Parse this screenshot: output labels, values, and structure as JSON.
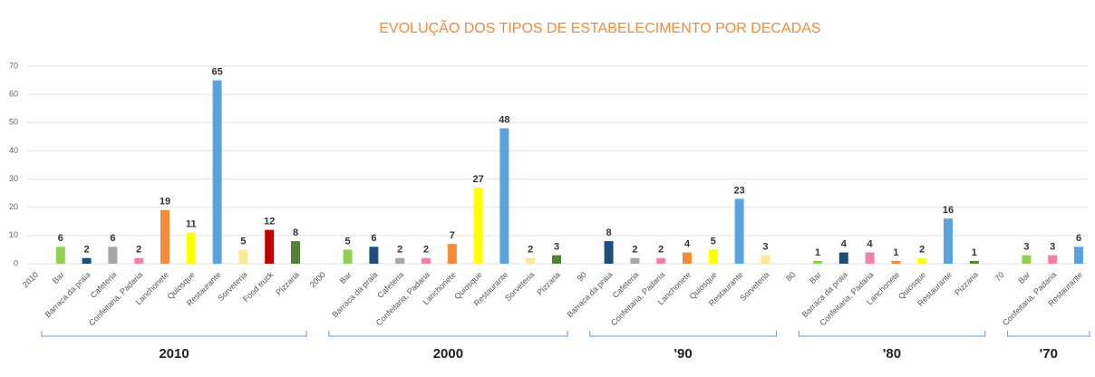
{
  "chart_data": {
    "type": "bar",
    "title": "EVOLUÇÃO DOS TIPOS DE ESTABELECIMENTO POR DECADAS",
    "ylim": [
      0,
      70
    ],
    "yticks": [
      0,
      10,
      20,
      30,
      40,
      50,
      60,
      70
    ],
    "grid": true,
    "groups": [
      {
        "label": "2010",
        "categories": [
          "2010",
          "Bar",
          "Barraca da praia",
          "Cafeteria",
          "Confeitaria, Padaria",
          "Lanchonete",
          "Quiosque",
          "Restaurante",
          "Sorveteria",
          "Food truck",
          "Pizzaria"
        ],
        "values": [
          null,
          6,
          2,
          6,
          2,
          19,
          11,
          65,
          5,
          12,
          8
        ],
        "colors": [
          null,
          "#92d050",
          "#1f4e79",
          "#a6a6a6",
          "#f47fac",
          "#f28c38",
          "#ffff00",
          "#5ba3dc",
          "#ffe699",
          "#c00000",
          "#548235"
        ]
      },
      {
        "label": "2000",
        "categories": [
          "2000",
          "Bar",
          "Barraca da praia",
          "Cafeteria",
          "Confeitaria, Padaria",
          "Lanchonete",
          "Quiosque",
          "Restaurante",
          "Sorveteria",
          "Pizzaria"
        ],
        "values": [
          null,
          5,
          6,
          2,
          2,
          7,
          27,
          48,
          2,
          3
        ],
        "colors": [
          null,
          "#92d050",
          "#1f4e79",
          "#a6a6a6",
          "#f47fac",
          "#f28c38",
          "#ffff00",
          "#5ba3dc",
          "#ffe699",
          "#548235"
        ]
      },
      {
        "label": "'90",
        "categories": [
          "90",
          "Barraca da praia",
          "Cafeteria",
          "Confeitaria, Padaria",
          "Lanchonete",
          "Quiosque",
          "Restaurante",
          "Sorveteria"
        ],
        "values": [
          null,
          8,
          2,
          2,
          4,
          5,
          23,
          3
        ],
        "colors": [
          null,
          "#1f4e79",
          "#a6a6a6",
          "#f47fac",
          "#f28c38",
          "#ffff00",
          "#5ba3dc",
          "#ffe699"
        ]
      },
      {
        "label": "'80",
        "categories": [
          "80",
          "Bar",
          "Barraca da praia",
          "Confeitaria, Padaria",
          "Lanchonete",
          "Quiosque",
          "Restaurante",
          "Pizzaria"
        ],
        "values": [
          null,
          1,
          4,
          4,
          1,
          2,
          16,
          1
        ],
        "colors": [
          null,
          "#92d050",
          "#1f4e79",
          "#f47fac",
          "#f28c38",
          "#ffff00",
          "#5ba3dc",
          "#548235"
        ]
      },
      {
        "label": "'70",
        "categories": [
          "70",
          "Bar",
          "Confeitaria, Padaria",
          "Restaurante"
        ],
        "values": [
          null,
          3,
          3,
          6
        ],
        "colors": [
          null,
          "#92d050",
          "#f47fac",
          "#5ba3dc"
        ]
      }
    ]
  }
}
